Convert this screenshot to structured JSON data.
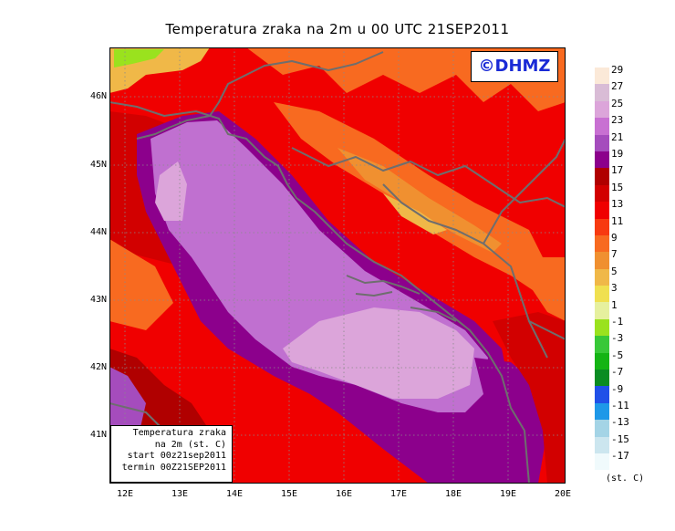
{
  "title": "Temperatura zraka na 2m u 00 UTC 21SEP2011",
  "logo": "©DHMZ",
  "lat_labels": [
    "46N",
    "45N",
    "44N",
    "43N",
    "42N",
    "41N"
  ],
  "lon_labels": [
    "12E",
    "13E",
    "14E",
    "15E",
    "16E",
    "17E",
    "18E",
    "19E",
    "20E"
  ],
  "infobox": {
    "line1": "Temperatura zraka",
    "line2": "na 2m (st. C)",
    "line3": "start 00z21sep2011",
    "line4": "termin 00Z21SEP2011"
  },
  "colorbar": {
    "unit": "(st. C)",
    "labels": [
      "29",
      "27",
      "25",
      "23",
      "21",
      "19",
      "17",
      "15",
      "13",
      "11",
      "9",
      "7",
      "5",
      "3",
      "1",
      "-1",
      "-3",
      "-5",
      "-7",
      "-9",
      "-11",
      "-13",
      "-15",
      "-17"
    ],
    "colors": [
      "#fbe9d8",
      "#d9bcd6",
      "#dca5da",
      "#c870d2",
      "#a54cbd",
      "#8c008c",
      "#b00000",
      "#d20000",
      "#f00000",
      "#f83a10",
      "#f86a20",
      "#f09030",
      "#f0b848",
      "#f0e050",
      "#e6f09e",
      "#9ae21e",
      "#38c838",
      "#14b414",
      "#0a8c22",
      "#2050e8",
      "#1e98e8",
      "#a4d4e6",
      "#cce6ef",
      "#f0fafc"
    ]
  },
  "colors": {
    "sea_warm": "#c070d0",
    "sea_warmest": "#dca5da",
    "coast_warm": "#a04cbc",
    "land_warm": "#d20000",
    "land_mid": "#f00000",
    "land_cool": "#f86a20",
    "border_line": "#6e6e6e"
  }
}
